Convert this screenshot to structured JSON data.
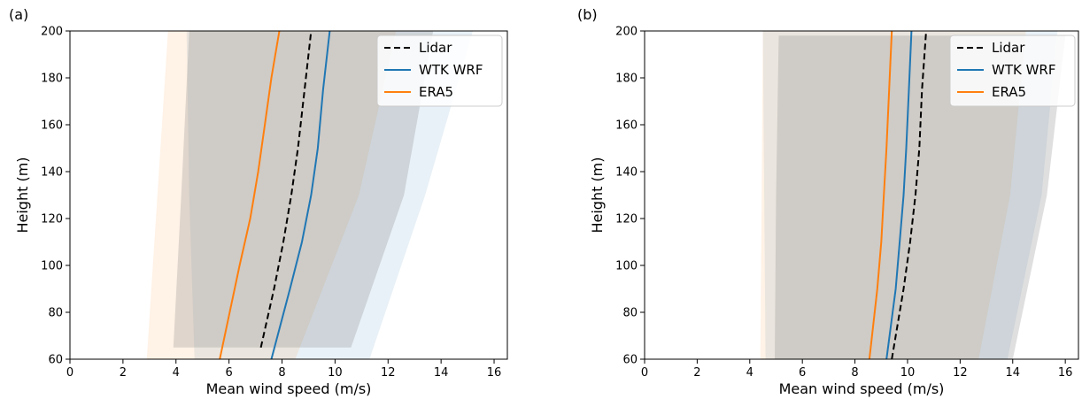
{
  "chart_data": [
    {
      "type": "line",
      "panel_label": "(a)",
      "xlabel": "Mean wind speed (m/s)",
      "ylabel": "Height (m)",
      "xlim": [
        0,
        16.5
      ],
      "ylim": [
        60,
        200
      ],
      "xticks": [
        0,
        2,
        4,
        6,
        8,
        10,
        12,
        14,
        16
      ],
      "yticks": [
        60,
        80,
        100,
        120,
        140,
        160,
        180,
        200
      ],
      "legend": {
        "position": "top-right",
        "entries": [
          "Lidar",
          "WTK WRF",
          "ERA5"
        ]
      },
      "grid": false,
      "series": [
        {
          "name": "Lidar",
          "color": "#000000",
          "dash": true,
          "x": [
            7.2,
            7.7,
            8.05,
            8.35,
            8.6,
            8.85,
            9.1
          ],
          "y": [
            65,
            90,
            110,
            130,
            150,
            175,
            200
          ]
        },
        {
          "name": "WTK WRF",
          "color": "#1f77b4",
          "dash": false,
          "x": [
            7.6,
            8.3,
            8.75,
            9.1,
            9.35,
            9.55,
            9.8
          ],
          "y": [
            60,
            90,
            110,
            130,
            150,
            175,
            200
          ]
        },
        {
          "name": "ERA5",
          "color": "#ff7f0e",
          "dash": false,
          "x": [
            5.65,
            6.4,
            6.8,
            7.1,
            7.35,
            7.6,
            7.9
          ],
          "y": [
            60,
            100,
            120,
            140,
            160,
            180,
            200
          ]
        }
      ],
      "bands": [
        {
          "name": "WTK WRF",
          "color": "#1f77b4",
          "opacity": 0.1,
          "lower_x": [
            4.7,
            4.5,
            4.4
          ],
          "upper_x": [
            11.3,
            13.4,
            15.2
          ],
          "y": [
            60,
            130,
            200
          ]
        },
        {
          "name": "ERA5",
          "color": "#ff7f0e",
          "opacity": 0.1,
          "lower_x": [
            2.9,
            3.3,
            3.7
          ],
          "upper_x": [
            8.5,
            10.9,
            12.3
          ],
          "y": [
            60,
            130,
            200
          ]
        },
        {
          "name": "Lidar",
          "color": "#7f7f7f",
          "opacity": 0.25,
          "lower_x": [
            3.9,
            4.2,
            4.5
          ],
          "upper_x": [
            10.6,
            12.6,
            13.7
          ],
          "y": [
            65,
            130,
            200
          ]
        }
      ]
    },
    {
      "type": "line",
      "panel_label": "(b)",
      "xlabel": "Mean wind speed (m/s)",
      "ylabel": "Height (m)",
      "xlim": [
        0,
        16.5
      ],
      "ylim": [
        60,
        200
      ],
      "xticks": [
        0,
        2,
        4,
        6,
        8,
        10,
        12,
        14,
        16
      ],
      "yticks": [
        60,
        80,
        100,
        120,
        140,
        160,
        180,
        200
      ],
      "legend": {
        "position": "top-right",
        "entries": [
          "Lidar",
          "WTK WRF",
          "ERA5"
        ]
      },
      "grid": false,
      "series": [
        {
          "name": "Lidar",
          "color": "#000000",
          "dash": true,
          "x": [
            9.4,
            9.85,
            10.1,
            10.3,
            10.45,
            10.55,
            10.7
          ],
          "y": [
            60,
            90,
            110,
            130,
            150,
            175,
            199
          ]
        },
        {
          "name": "WTK WRF",
          "color": "#1f77b4",
          "dash": false,
          "x": [
            9.2,
            9.55,
            9.7,
            9.85,
            9.95,
            10.05,
            10.15
          ],
          "y": [
            60,
            90,
            110,
            130,
            150,
            175,
            200
          ]
        },
        {
          "name": "ERA5",
          "color": "#ff7f0e",
          "dash": false,
          "x": [
            8.55,
            8.85,
            9.0,
            9.1,
            9.2,
            9.3,
            9.4
          ],
          "y": [
            60,
            90,
            110,
            130,
            150,
            175,
            200
          ]
        }
      ],
      "bands": [
        {
          "name": "WTK WRF",
          "color": "#1f77b4",
          "opacity": 0.1,
          "lower_x": [
            4.6,
            4.55,
            4.5
          ],
          "upper_x": [
            13.8,
            15.1,
            15.7
          ],
          "y": [
            60,
            130,
            200
          ]
        },
        {
          "name": "ERA5",
          "color": "#ff7f0e",
          "opacity": 0.1,
          "lower_x": [
            4.4,
            4.45,
            4.5
          ],
          "upper_x": [
            12.7,
            13.9,
            14.5
          ],
          "y": [
            60,
            130,
            200
          ]
        },
        {
          "name": "Lidar",
          "color": "#7f7f7f",
          "opacity": 0.25,
          "lower_x": [
            4.95,
            5.0,
            5.1
          ],
          "upper_x": [
            14.0,
            15.3,
            16.0
          ],
          "y": [
            60,
            130,
            198
          ]
        }
      ]
    }
  ]
}
